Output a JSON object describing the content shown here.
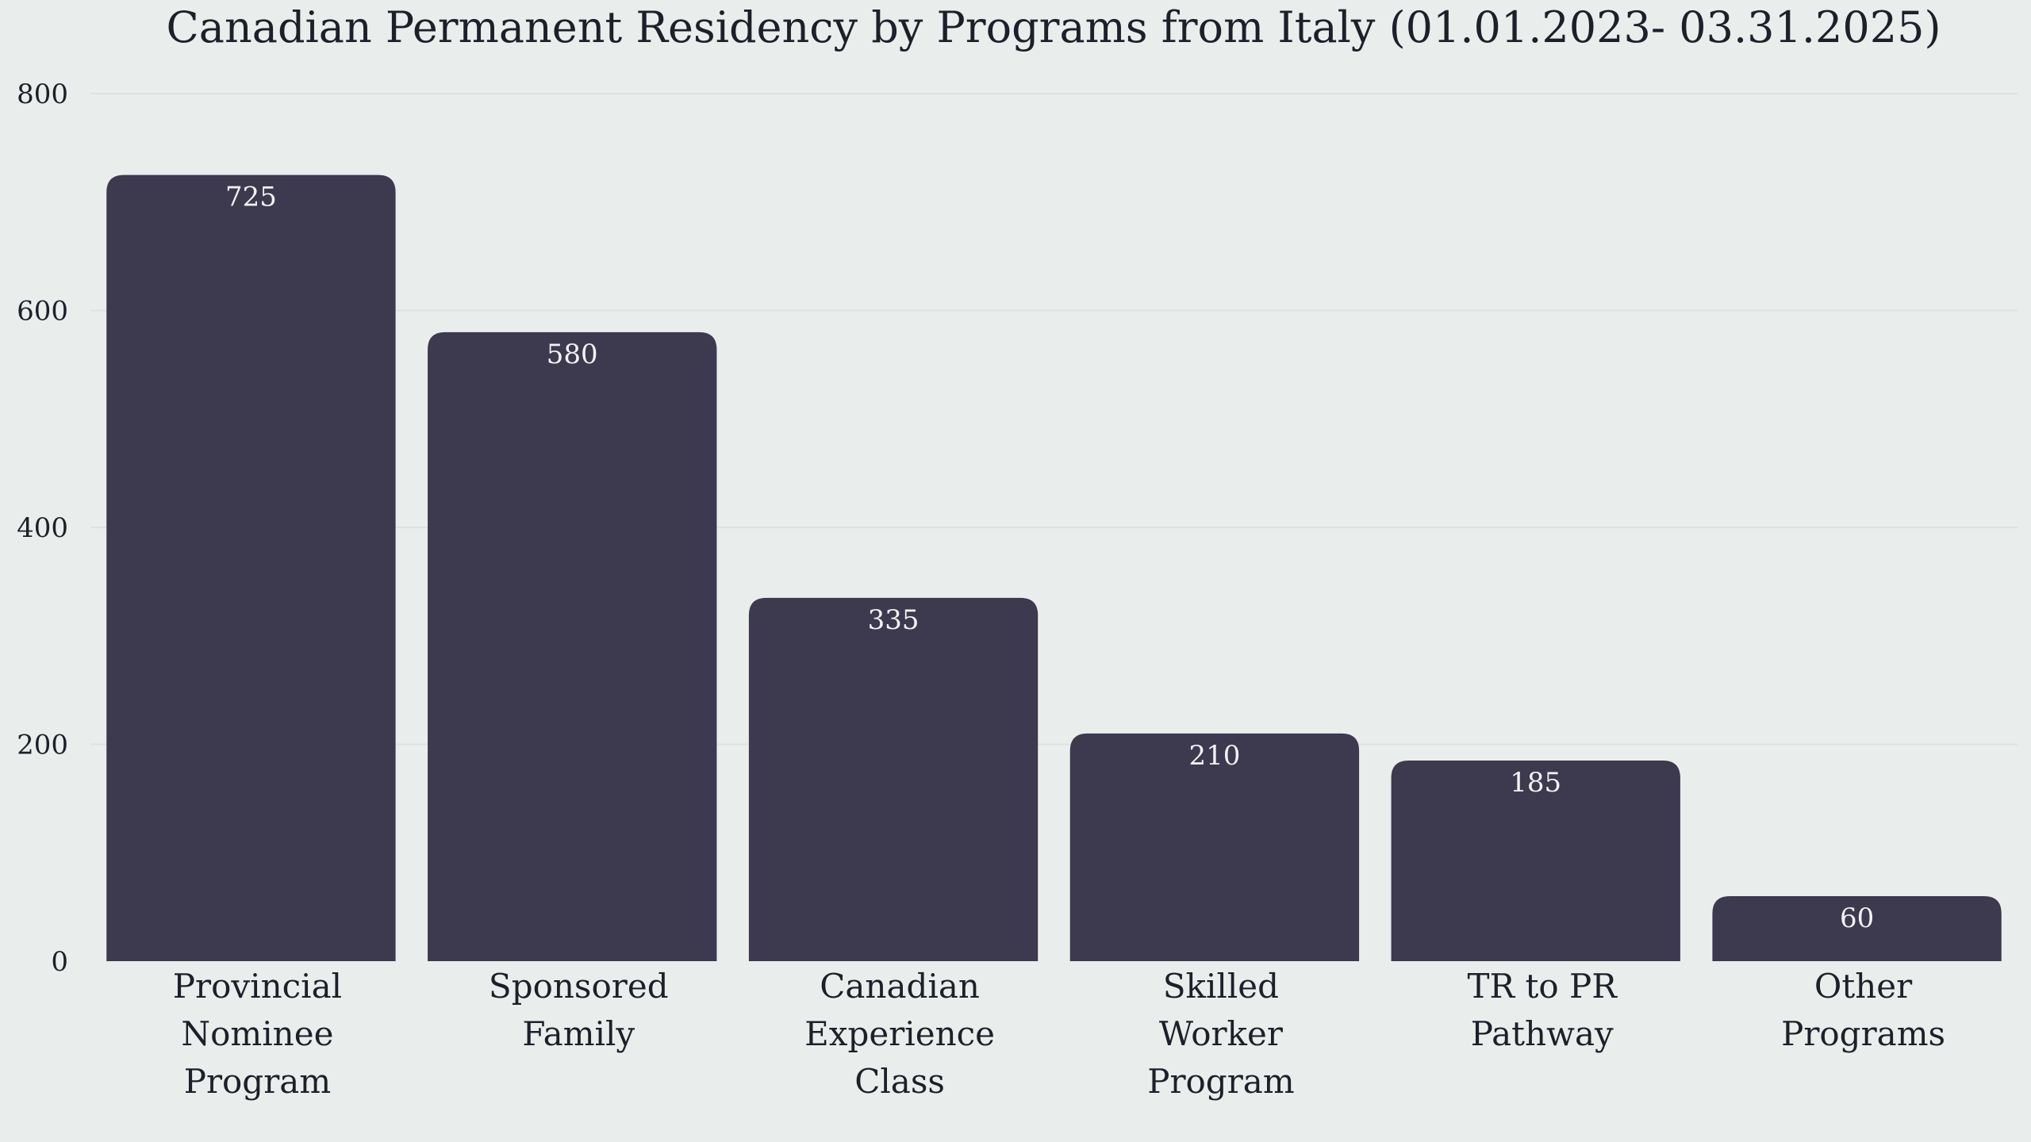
{
  "chart_data": {
    "type": "bar",
    "title": "Canadian Permanent Residency by Programs from Italy (01.01.2023- 03.31.2025)",
    "xlabel": "",
    "ylabel": "",
    "categories": [
      "Provincial Nominee Program",
      "Sponsored Family",
      "Canadian Experience Class",
      "Skilled Worker Program",
      "TR to PR Pathway",
      "Other Programs"
    ],
    "values": [
      725,
      580,
      335,
      210,
      185,
      60
    ],
    "ylim": [
      0,
      800
    ],
    "yticks": [
      0,
      200,
      400,
      600,
      800
    ],
    "grid": true,
    "data_labels": true,
    "colors": {
      "bar": "#3d394f",
      "background": "#e9eeed",
      "grid": "#dde2e1",
      "label": "#f2f2f4"
    }
  }
}
